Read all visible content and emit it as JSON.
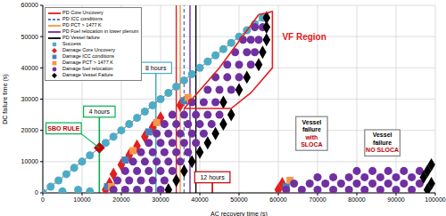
{
  "chart_data": {
    "type": "scatter",
    "x_label": "AC recovery time (s)",
    "y_label": "DC failure time (s)",
    "xlim": [
      0,
      100000
    ],
    "ylim": [
      0,
      60000
    ],
    "xticks": [
      0,
      10000,
      20000,
      30000,
      40000,
      50000,
      60000,
      70000,
      80000,
      90000,
      100000
    ],
    "yticks": [
      0,
      10000,
      20000,
      30000,
      40000,
      50000,
      60000
    ],
    "grid": true,
    "legend": "upper left",
    "pd_lines": [
      {
        "name": "PD Core Uncovery",
        "color": "#e02020",
        "line_style": "solid",
        "x": 34000
      },
      {
        "name": "PD ICC conditions",
        "color": "#4a7ebb",
        "line_style": "dashed",
        "x": 36000
      },
      {
        "name": "PD PCT > 1477 K",
        "color": "#f79646",
        "line_style": "solid",
        "x": 35000
      },
      {
        "name": "PD Fuel relocation in lower plenum",
        "color": "#7030a0",
        "line_style": "solid",
        "x": 37500
      },
      {
        "name": "PD Vessel failure",
        "color": "#000000",
        "line_style": "solid",
        "x": 39000
      }
    ],
    "series": [
      {
        "name": "Success",
        "color": "#4bacc6",
        "marker": "circle",
        "x": [
          0,
          2000,
          4000,
          6000,
          8000,
          10000,
          12000,
          16000,
          18000,
          20000,
          22000,
          24000,
          26000,
          28000,
          30000,
          32000,
          34000,
          36000,
          38000,
          40000,
          42000,
          44000,
          46000,
          48000,
          50000,
          52000,
          54000,
          56000,
          5000,
          9000,
          12000
        ],
        "values": [
          0,
          2000,
          4000,
          6000,
          8000,
          10000,
          12000,
          16000,
          18000,
          20000,
          22000,
          24000,
          26000,
          28000,
          30000,
          32000,
          34000,
          36000,
          38000,
          40000,
          42000,
          44000,
          46000,
          48000,
          50000,
          52000,
          54000,
          56000,
          500,
          1000,
          500
        ]
      },
      {
        "name": "Damage Core Uncovery",
        "color": "#e02020",
        "marker": "diamond",
        "x": [
          16000,
          17000,
          18000,
          20000,
          22000,
          24000,
          26000,
          28000,
          30000,
          35000,
          60000,
          61000
        ],
        "values": [
          1000,
          3000,
          6000,
          9000,
          12000,
          15000,
          18000,
          21000,
          24000,
          28000,
          1000,
          3000
        ]
      },
      {
        "name": "Damage ICC conditions",
        "color": "#4a7ebb",
        "marker": "square",
        "x": [
          16500,
          21000,
          27000,
          36000,
          62000
        ],
        "values": [
          2000,
          10500,
          19500,
          29500,
          2000
        ]
      },
      {
        "name": "Damage PCT > 1477 K",
        "color": "#f79646",
        "marker": "square",
        "x": [
          17500,
          23000,
          29000,
          37000,
          63000
        ],
        "values": [
          2000,
          13500,
          22500,
          30500,
          4000
        ]
      },
      {
        "name": "Damage fuel relocation",
        "color": "#7030a0",
        "marker": "circle",
        "x": [
          18000,
          21000,
          24000,
          27000,
          30000,
          19000,
          22000,
          25000,
          28000,
          31000,
          21000,
          24000,
          27000,
          30000,
          33000,
          23000,
          26000,
          29000,
          32000,
          35000,
          25000,
          28000,
          31000,
          34000,
          37000,
          27000,
          30000,
          33000,
          36000,
          39000,
          29000,
          32000,
          35000,
          38000,
          41000,
          31000,
          34000,
          37000,
          40000,
          43000,
          33000,
          36000,
          39000,
          42000,
          45000,
          38000,
          41000,
          44000,
          42000,
          45000,
          48000,
          44000,
          47000,
          50000,
          47000,
          50000,
          53000,
          49000,
          52000,
          54000,
          51000,
          53000,
          55000,
          54000,
          56000,
          62000,
          66000,
          70000,
          74000,
          78000,
          82000,
          86000,
          90000,
          94000,
          64000,
          68000,
          72000,
          76000,
          80000,
          84000,
          88000,
          92000,
          96000,
          70000,
          74000,
          78000,
          82000,
          86000,
          90000,
          94000,
          80000,
          84000,
          88000,
          92000,
          96000
        ],
        "values": [
          1000,
          1000,
          1000,
          1000,
          1000,
          4000,
          4000,
          4000,
          4000,
          4000,
          7000,
          7000,
          7000,
          7000,
          7000,
          10000,
          10000,
          10000,
          10000,
          10000,
          13000,
          13000,
          13000,
          13000,
          13000,
          16000,
          16000,
          16000,
          16000,
          16000,
          19000,
          19000,
          19000,
          19000,
          19000,
          22000,
          22000,
          22000,
          22000,
          22000,
          25000,
          25000,
          25000,
          25000,
          25000,
          29000,
          29000,
          29000,
          33000,
          33000,
          33000,
          37000,
          37000,
          37000,
          41000,
          41000,
          41000,
          45000,
          45000,
          45000,
          49000,
          49000,
          49000,
          53000,
          53000,
          1000,
          1000,
          1000,
          1000,
          1000,
          1000,
          1000,
          1000,
          1000,
          3000,
          3000,
          3000,
          3000,
          3000,
          3000,
          3000,
          3000,
          3000,
          5000,
          5000,
          5000,
          5000,
          5000,
          5000,
          5000,
          7000,
          7000,
          7000,
          7000,
          7000
        ]
      },
      {
        "name": "Damage Vessel Failure",
        "color": "#000000",
        "marker": "diamond",
        "x": [
          32000,
          34000,
          36000,
          38000,
          40000,
          42000,
          44000,
          46000,
          48000,
          46000,
          50000,
          52000,
          55000,
          56000,
          57000,
          57000,
          57000,
          98000,
          99000,
          97000,
          98000,
          99000
        ],
        "values": [
          1000,
          4000,
          7000,
          10000,
          13000,
          16000,
          19000,
          22000,
          25000,
          29000,
          33000,
          37000,
          41000,
          45000,
          49000,
          53000,
          56000,
          1000,
          3000,
          5000,
          7000,
          9000
        ]
      }
    ],
    "reference_line": {
      "color": "#a0522d",
      "x": [
        0,
        58000
      ],
      "values": [
        0,
        58000
      ]
    },
    "vf_region": {
      "label": "VF Region",
      "color": "#e02020",
      "label_x": 61000,
      "label_y": 50000,
      "x": [
        36000,
        48000,
        53000,
        58500,
        58500,
        55000,
        45000,
        36000
      ],
      "values": [
        27000,
        27000,
        32000,
        40000,
        58000,
        57000,
        40000,
        27000
      ]
    },
    "time_markers": [
      {
        "label": "4 hours",
        "x": 14400,
        "label_y": 26000,
        "color": "#00b050"
      },
      {
        "label": "8 hours",
        "x": 28800,
        "label_y": 40000,
        "color": "#4bacc6"
      },
      {
        "label": "12 hours",
        "x": 43200,
        "label_y": 5000,
        "color": "#c00000"
      }
    ],
    "sbo_rule": {
      "label": "SBO RULE",
      "x": 14400,
      "y": 14400,
      "color": "#c00000"
    },
    "annotations": [
      {
        "lines": [
          "Vessel",
          "failure",
          "with",
          "SLOCA"
        ],
        "colors": [
          "#000000",
          "#000000",
          "#c00000",
          "#c00000"
        ],
        "x": 68500,
        "y": 19000
      },
      {
        "lines": [
          "Vessel",
          "failure",
          "NO SLOCA"
        ],
        "colors": [
          "#000000",
          "#000000",
          "#c00000"
        ],
        "x": 86500,
        "y": 16000
      }
    ]
  }
}
